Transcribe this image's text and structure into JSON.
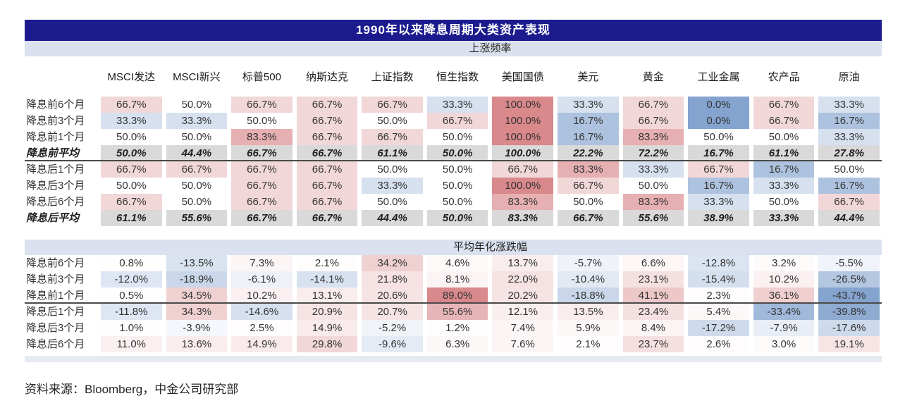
{
  "title": "1990年以来降息周期大类资产表现",
  "footer": {
    "source_note": "资料来源：Bloomberg，中金公司研究部"
  },
  "colors": {
    "title_bar_bg": "#1b1b8e",
    "title_text": "#ffffff",
    "band_bg": "#dbe1ee",
    "avg_row_bg": "#d9d9d9",
    "heat_red": "#d9888b",
    "heat_blue": "#84a3ce",
    "separator": "#4a4a4a",
    "bottom_strip_bg": "#e6eaf2",
    "text": "#333333"
  },
  "chart_data": {
    "type": "heatmap",
    "title": "1990年以来降息周期大类资产表现",
    "unit": "%",
    "columns": [
      "MSCI发达",
      "MSCI新兴",
      "标普500",
      "纳斯达克",
      "上证指数",
      "恒生指数",
      "美国国债",
      "美元",
      "黄金",
      "工业金属",
      "农产品",
      "原油"
    ],
    "sections": [
      {
        "label": "上涨频率",
        "color_scale": {
          "mid": 50,
          "pos_max": 100,
          "neg_max": 0
        },
        "separator_after_row": 3,
        "rows": [
          {
            "label": "降息前6个月",
            "avg": false,
            "values": [
              66.7,
              50.0,
              66.7,
              66.7,
              66.7,
              33.3,
              100.0,
              33.3,
              66.7,
              0.0,
              66.7,
              33.3
            ]
          },
          {
            "label": "降息前3个月",
            "avg": false,
            "values": [
              33.3,
              33.3,
              50.0,
              66.7,
              50.0,
              66.7,
              100.0,
              16.7,
              66.7,
              0.0,
              66.7,
              16.7
            ]
          },
          {
            "label": "降息前1个月",
            "avg": false,
            "values": [
              50.0,
              50.0,
              83.3,
              66.7,
              66.7,
              50.0,
              100.0,
              16.7,
              83.3,
              50.0,
              50.0,
              33.3
            ]
          },
          {
            "label": "降息前平均",
            "avg": true,
            "values": [
              50.0,
              44.4,
              66.7,
              66.7,
              61.1,
              50.0,
              100.0,
              22.2,
              72.2,
              16.7,
              61.1,
              27.8
            ]
          },
          {
            "label": "降息后1个月",
            "avg": false,
            "values": [
              66.7,
              66.7,
              66.7,
              66.7,
              50.0,
              50.0,
              66.7,
              83.3,
              33.3,
              66.7,
              16.7,
              50.0
            ]
          },
          {
            "label": "降息后3个月",
            "avg": false,
            "values": [
              50.0,
              50.0,
              66.7,
              66.7,
              33.3,
              50.0,
              100.0,
              66.7,
              50.0,
              16.7,
              33.3,
              16.7
            ]
          },
          {
            "label": "降息后6个月",
            "avg": false,
            "values": [
              66.7,
              50.0,
              66.7,
              66.7,
              50.0,
              50.0,
              83.3,
              50.0,
              83.3,
              33.3,
              50.0,
              66.7
            ]
          },
          {
            "label": "降息后平均",
            "avg": true,
            "values": [
              61.1,
              55.6,
              66.7,
              66.7,
              44.4,
              50.0,
              83.3,
              66.7,
              55.6,
              38.9,
              33.3,
              44.4
            ]
          }
        ]
      },
      {
        "label": "平均年化涨跌幅",
        "color_scale": {
          "mid": 0,
          "pos_max": 89,
          "neg_max": -43.7
        },
        "separator_after_row": 2,
        "rows": [
          {
            "label": "降息前6个月",
            "avg": false,
            "values": [
              0.8,
              -13.5,
              7.3,
              2.1,
              34.2,
              4.6,
              13.7,
              -5.7,
              6.6,
              -12.8,
              3.2,
              -5.5
            ]
          },
          {
            "label": "降息前3个月",
            "avg": false,
            "values": [
              -12.0,
              -18.9,
              -6.1,
              -14.1,
              21.8,
              8.1,
              22.0,
              -10.4,
              23.1,
              -15.4,
              10.2,
              -26.5
            ]
          },
          {
            "label": "降息前1个月",
            "avg": false,
            "values": [
              0.5,
              34.5,
              10.2,
              13.1,
              20.6,
              89.0,
              20.2,
              -18.8,
              41.1,
              2.3,
              36.1,
              -43.7
            ]
          },
          {
            "label": "降息后1个月",
            "avg": false,
            "values": [
              -11.8,
              34.3,
              -14.6,
              20.9,
              20.7,
              55.6,
              12.1,
              13.5,
              23.4,
              5.4,
              -33.4,
              -39.8
            ]
          },
          {
            "label": "降息后3个月",
            "avg": false,
            "values": [
              1.0,
              -3.9,
              2.5,
              14.9,
              -5.2,
              1.2,
              7.4,
              5.9,
              8.4,
              -17.2,
              -7.9,
              -17.6
            ]
          },
          {
            "label": "降息后6个月",
            "avg": false,
            "values": [
              11.0,
              13.6,
              14.9,
              29.8,
              -9.6,
              6.3,
              7.6,
              2.1,
              23.7,
              2.6,
              3.0,
              19.1
            ]
          }
        ]
      }
    ]
  }
}
